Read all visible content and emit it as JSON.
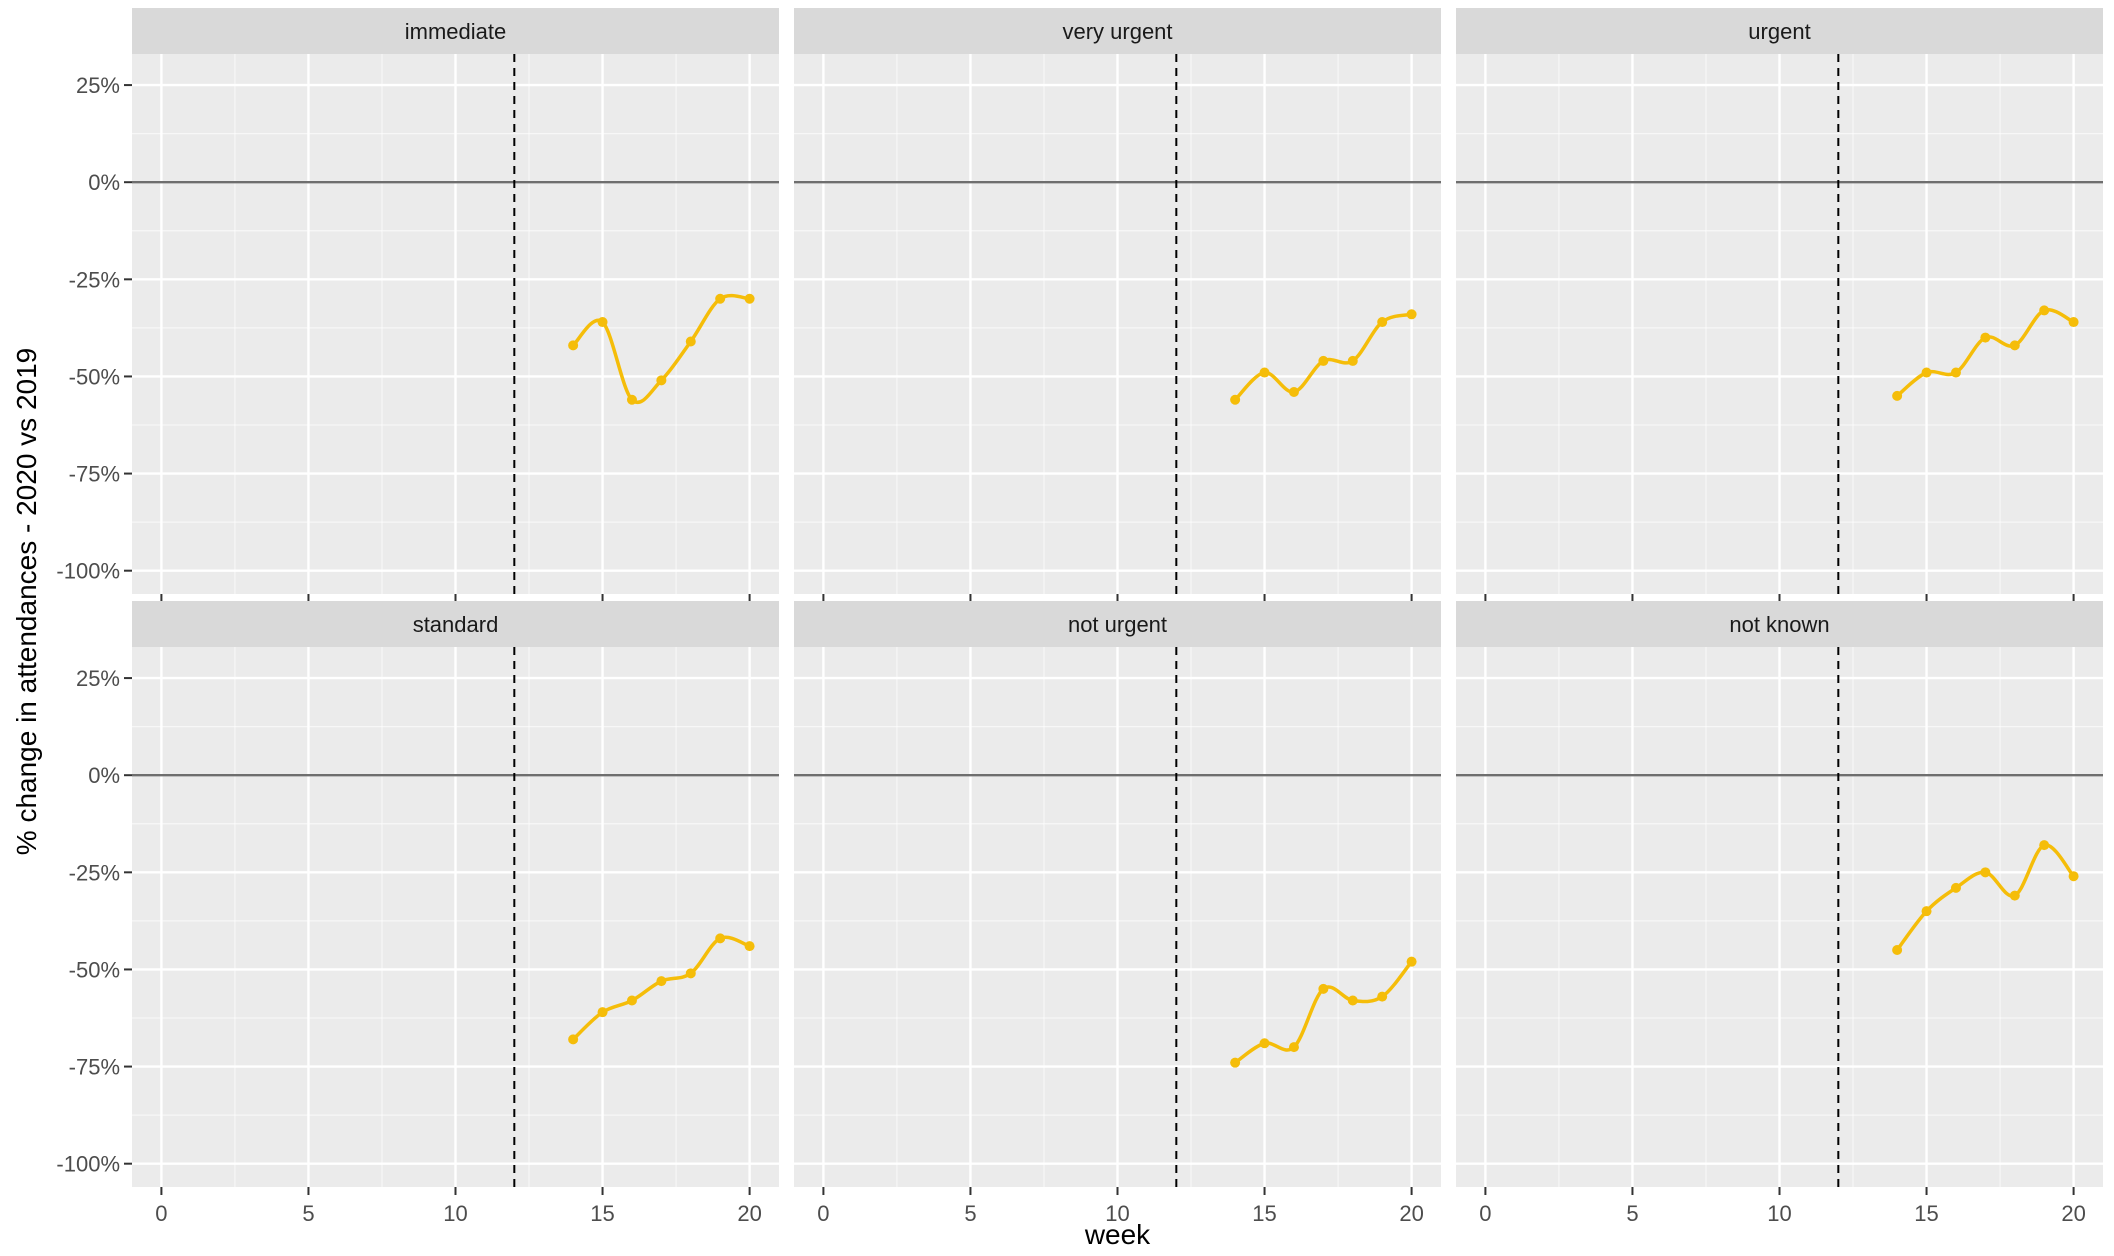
{
  "chart_data": {
    "type": "line",
    "layout": "facet-grid",
    "rows": 2,
    "cols": 3,
    "xlabel": "week",
    "ylabel": "% change in attendances - 2020 vs 2019",
    "xlim": [
      -1,
      21
    ],
    "ylim": [
      -106,
      33
    ],
    "x_ticks": [
      0,
      5,
      10,
      15,
      20
    ],
    "y_ticks": [
      25,
      0,
      -25,
      -50,
      -75,
      -100
    ],
    "y_tick_labels": [
      "25%",
      "0%",
      "-25%",
      "-50%",
      "-75%",
      "-100%"
    ],
    "grid": true,
    "reference_hline": 0,
    "reference_vline": 12,
    "colors": {
      "series": "#F5BD09",
      "panel_bg": "#EBEBEB",
      "strip_bg": "#D9D9D9",
      "grid_major": "#FFFFFF",
      "hline": "#6E6E6E",
      "vline": "#000000"
    },
    "panels": [
      {
        "title": "immediate",
        "x": [
          14,
          15,
          16,
          17,
          18,
          19,
          20
        ],
        "y": [
          -42,
          -36,
          -56,
          -51,
          -41,
          -30,
          -30
        ]
      },
      {
        "title": "very urgent",
        "x": [
          14,
          15,
          16,
          17,
          18,
          19,
          20
        ],
        "y": [
          -56,
          -49,
          -54,
          -46,
          -46,
          -36,
          -34
        ]
      },
      {
        "title": "urgent",
        "x": [
          14,
          15,
          16,
          17,
          18,
          19,
          20
        ],
        "y": [
          -55,
          -49,
          -49,
          -40,
          -42,
          -33,
          -36
        ]
      },
      {
        "title": "standard",
        "x": [
          14,
          15,
          16,
          17,
          18,
          19,
          20
        ],
        "y": [
          -68,
          -61,
          -58,
          -53,
          -51,
          -42,
          -44
        ]
      },
      {
        "title": "not urgent",
        "x": [
          14,
          15,
          16,
          17,
          18,
          19,
          20
        ],
        "y": [
          -74,
          -69,
          -70,
          -55,
          -58,
          -57,
          -48
        ]
      },
      {
        "title": "not known",
        "x": [
          14,
          15,
          16,
          17,
          18,
          19,
          20
        ],
        "y": [
          -45,
          -35,
          -29,
          -25,
          -31,
          -18,
          -26
        ]
      }
    ]
  }
}
